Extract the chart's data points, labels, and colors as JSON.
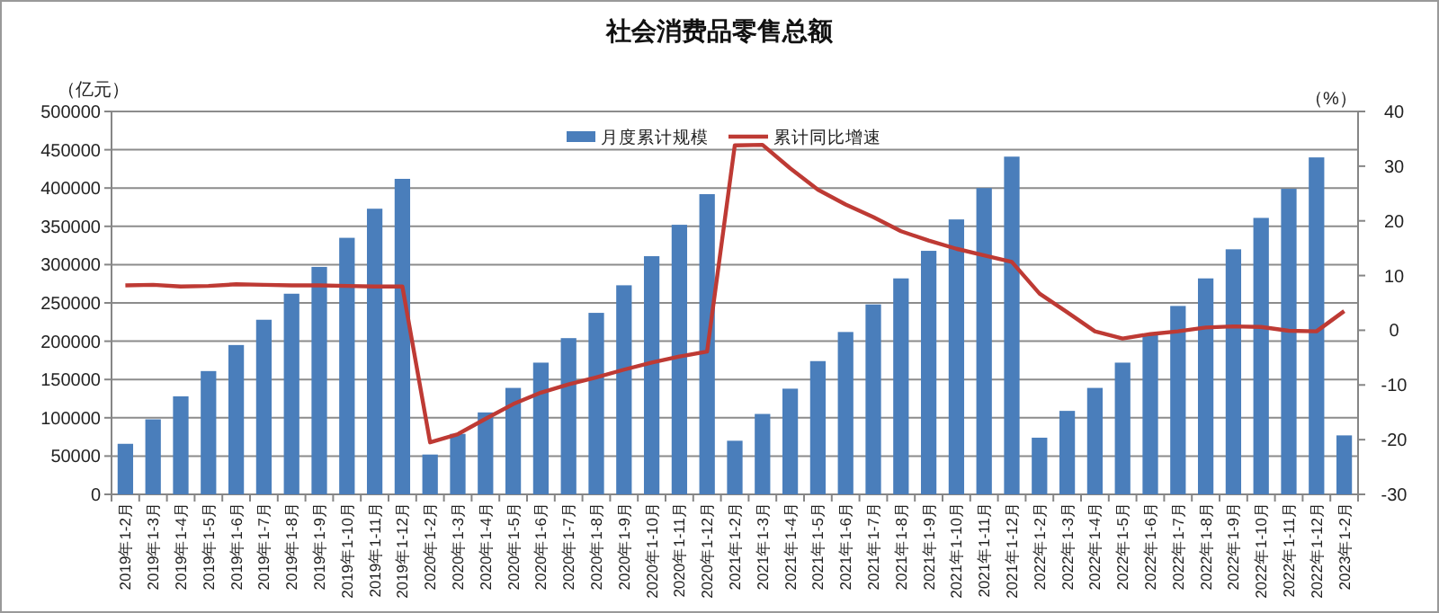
{
  "chart_data": {
    "type": "bar",
    "title": "社会消费品零售总额",
    "ylabel": "（亿元）",
    "y2label": "（%）",
    "categories": [
      "2019年1-2月",
      "2019年1-3月",
      "2019年1-4月",
      "2019年1-5月",
      "2019年1-6月",
      "2019年1-7月",
      "2019年1-8月",
      "2019年1-9月",
      "2019年1-10月",
      "2019年1-11月",
      "2019年1-12月",
      "2020年1-2月",
      "2020年1-3月",
      "2020年1-4月",
      "2020年1-5月",
      "2020年1-6月",
      "2020年1-7月",
      "2020年1-8月",
      "2020年1-9月",
      "2020年1-10月",
      "2020年1-11月",
      "2020年1-12月",
      "2021年1-2月",
      "2021年1-3月",
      "2021年1-4月",
      "2021年1-5月",
      "2021年1-6月",
      "2021年1-7月",
      "2021年1-8月",
      "2021年1-9月",
      "2021年1-10月",
      "2021年1-11月",
      "2021年1-12月",
      "2022年1-2月",
      "2022年1-3月",
      "2022年1-4月",
      "2022年1-5月",
      "2022年1-6月",
      "2022年1-7月",
      "2022年1-8月",
      "2022年1-9月",
      "2022年1-10月",
      "2022年1-11月",
      "2022年1-12月",
      "2023年1-2月"
    ],
    "series": [
      {
        "name": "月度累计规模",
        "color": "#4a7ebb",
        "values": [
          66000,
          98000,
          128000,
          161000,
          195000,
          228000,
          262000,
          297000,
          335000,
          373000,
          412000,
          52000,
          79000,
          107000,
          139000,
          172000,
          204000,
          237000,
          273000,
          311000,
          352000,
          392000,
          70000,
          105000,
          138000,
          174000,
          212000,
          248000,
          282000,
          318000,
          359000,
          400000,
          441000,
          74000,
          109000,
          139000,
          172000,
          210000,
          246000,
          282000,
          320000,
          361000,
          399000,
          440000,
          77000
        ]
      },
      {
        "name": "累计同比增速",
        "type": "line",
        "axis": "y2",
        "color": "#be3a34",
        "values": [
          8.2,
          8.3,
          8.0,
          8.1,
          8.4,
          8.3,
          8.2,
          8.2,
          8.1,
          8.0,
          8.0,
          -20.5,
          -19.0,
          -16.2,
          -13.5,
          -11.4,
          -9.9,
          -8.6,
          -7.2,
          -5.9,
          -4.8,
          -3.9,
          33.8,
          33.9,
          29.6,
          25.7,
          23.0,
          20.7,
          18.1,
          16.4,
          14.9,
          13.7,
          12.5,
          6.7,
          3.3,
          -0.2,
          -1.5,
          -0.7,
          -0.2,
          0.5,
          0.7,
          0.6,
          -0.1,
          -0.2,
          3.5
        ]
      }
    ],
    "ylim": [
      0,
      500000
    ],
    "yticks": [
      0,
      50000,
      100000,
      150000,
      200000,
      250000,
      300000,
      350000,
      400000,
      450000,
      500000
    ],
    "y2lim": [
      -30,
      40
    ],
    "y2ticks": [
      -30,
      -20,
      -10,
      0,
      10,
      20,
      30,
      40
    ],
    "grid": "y",
    "legend": "top",
    "marker": "none",
    "line_style": "solid"
  }
}
